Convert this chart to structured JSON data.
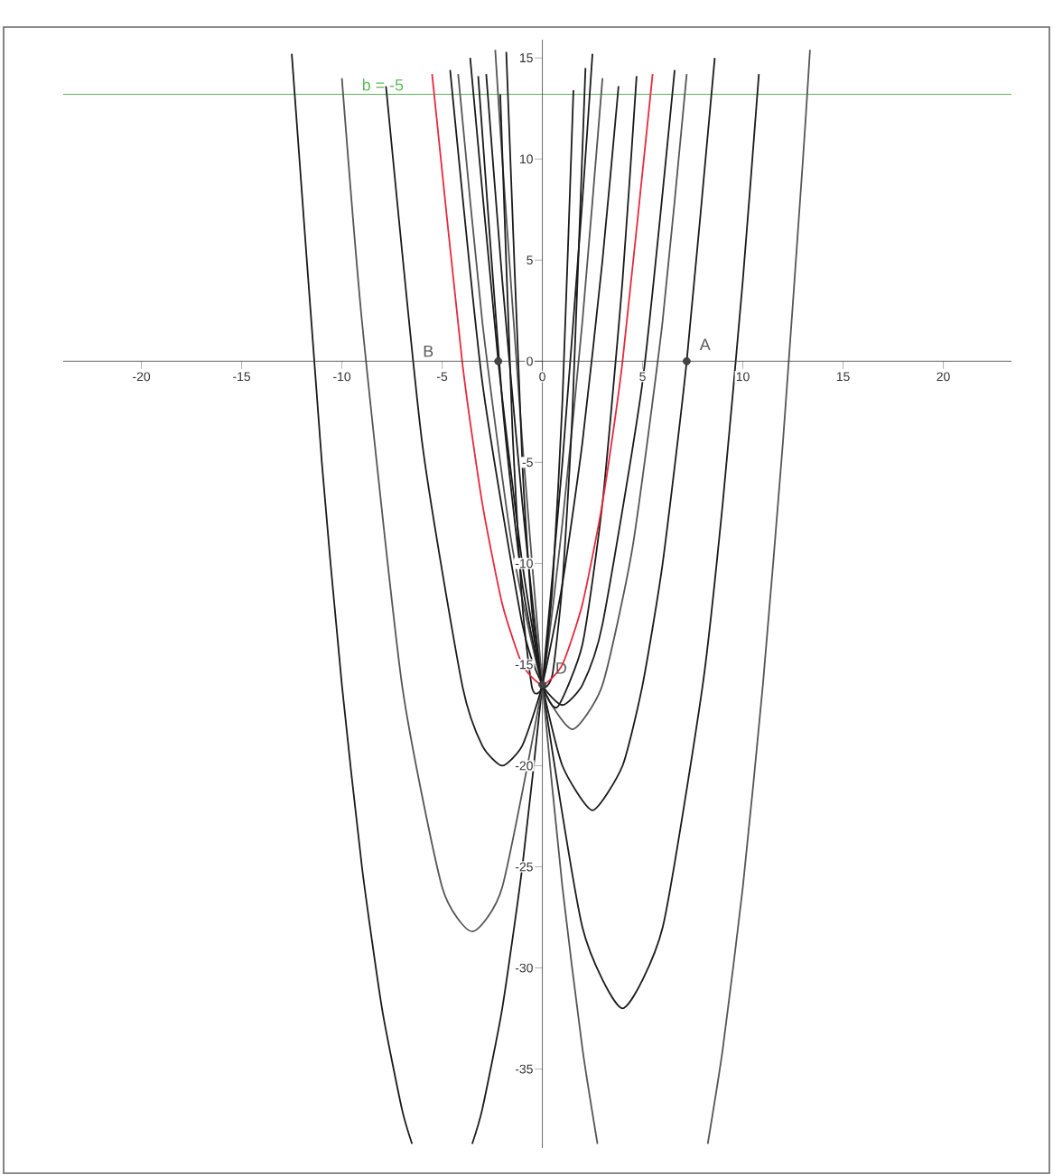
{
  "chart_data": {
    "type": "line",
    "xlim": [
      -23.9,
      23.4
    ],
    "ylim": [
      -38.9,
      15.9
    ],
    "xticks": [
      -20,
      -15,
      -10,
      -5,
      0,
      5,
      10,
      15,
      20
    ],
    "yticks": [
      -35,
      -30,
      -25,
      -20,
      -15,
      -10,
      -5,
      0,
      5,
      10,
      15
    ],
    "grid": false,
    "series": [
      {
        "color": "#1a1a1a",
        "x": [
          -12.5,
          -11,
          -10,
          -9,
          -8,
          -7,
          -6.5,
          null,
          -3.5,
          -3,
          -2,
          -1,
          0,
          1,
          2,
          2.5
        ],
        "values": [
          15.2,
          -5,
          -16,
          -25,
          -32,
          -37,
          -38.7,
          null,
          -38.7,
          -37,
          -32,
          -25,
          -16,
          -5,
          8,
          15.2
        ]
      },
      {
        "color": "#555555",
        "x": [
          -10,
          -9,
          -7,
          -5,
          -3.5,
          -2,
          0,
          1,
          2,
          3
        ],
        "values": [
          14,
          2,
          -16,
          -26,
          -28.2,
          -26,
          -16,
          -8,
          2,
          14
        ]
      },
      {
        "color": "#1a1a1a",
        "x": [
          -7.8,
          -6,
          -4,
          -3,
          -2,
          -1,
          0,
          1,
          2,
          3,
          3.8
        ],
        "values": [
          13.6,
          -4,
          -16,
          -19,
          -20,
          -19,
          -16,
          -11,
          -4,
          5,
          13.6
        ]
      },
      {
        "color": "#1a1a1a",
        "x": [
          -4.6,
          -3,
          -1,
          0,
          1,
          2,
          3,
          5,
          6.6
        ],
        "values": [
          14.4,
          -1,
          -13,
          -16,
          -17,
          -16,
          -13,
          -1,
          14.4
        ]
      },
      {
        "color": "#555555",
        "x": [
          -4.2,
          -3,
          -1.5,
          0,
          1.5,
          3,
          4.5,
          6,
          7.2
        ],
        "values": [
          14.2,
          2,
          -9.2,
          -16,
          -18.2,
          -16,
          -9.2,
          2,
          14.2
        ]
      },
      {
        "color": "#1a1a1a",
        "x": [
          -3.6,
          -2.2,
          -1,
          0,
          1,
          2.5,
          4,
          5,
          6,
          7.2,
          8.6
        ],
        "values": [
          15,
          0,
          -10,
          -16,
          -20,
          -22.2,
          -20,
          -16,
          -10,
          0,
          15
        ]
      },
      {
        "color": "#1a1a1a",
        "x": [
          -2.8,
          -2,
          -1,
          0,
          2,
          4,
          6,
          8,
          9,
          10,
          10.8
        ],
        "values": [
          14.2,
          4,
          -7,
          -16,
          -28,
          -32,
          -28,
          -16,
          -7,
          4,
          14.2
        ]
      },
      {
        "color": "#555555",
        "x": [
          -2.35,
          -2,
          -1,
          0,
          1,
          2,
          2.75,
          null,
          8.25,
          9,
          10,
          11,
          12,
          13,
          13.35
        ],
        "values": [
          15.4,
          10,
          -4,
          -16,
          -26,
          -34,
          -38.7,
          null,
          -38.7,
          -34,
          -26,
          -16,
          -4,
          10,
          15.4
        ]
      },
      {
        "color": "#1a1a1a",
        "x": [
          -3.2,
          -2,
          -1,
          0,
          0.75,
          2,
          3,
          4,
          4.7
        ],
        "values": [
          14.1,
          -2,
          -11,
          -16,
          -17.1,
          -14,
          -7,
          4,
          14.1
        ]
      },
      {
        "color": "#1a1a1a",
        "x": [
          -2.1,
          -1.5,
          -1,
          -0.5,
          0,
          0.5,
          1,
          1.55
        ],
        "values": [
          13.2,
          -3.2,
          -12,
          -16.2,
          -16,
          -11.2,
          -2,
          13.4
        ]
      },
      {
        "color": "#1a1a1a",
        "x": [
          -1.8,
          -1,
          -0.5,
          0,
          0.5,
          1,
          1.5,
          2.15
        ],
        "values": [
          15.3,
          -5,
          -12.5,
          -16,
          -15.5,
          -11,
          -2.5,
          14.5
        ]
      },
      {
        "color": "#e8283c",
        "x": [
          -5.5,
          -4,
          -3,
          -2,
          -1,
          0,
          1,
          2,
          3,
          4,
          5.5
        ],
        "values": [
          14.2,
          0,
          -7,
          -12,
          -15,
          -16,
          -15,
          -12,
          -7,
          0,
          14.2
        ]
      },
      {
        "type": "scatter",
        "color": "#444444",
        "x": [
          -2.2,
          7.2,
          0
        ],
        "values": [
          0,
          0,
          -16
        ]
      }
    ],
    "ref_lines": [
      {
        "axis": "y",
        "value": 13.2,
        "color": "#5cb85c"
      }
    ],
    "annotations": [
      {
        "text": "A",
        "x": 7.2,
        "y": 0
      },
      "B",
      {
        "text": "D",
        "x": 0,
        "y": -16
      },
      "b = -5"
    ]
  }
}
